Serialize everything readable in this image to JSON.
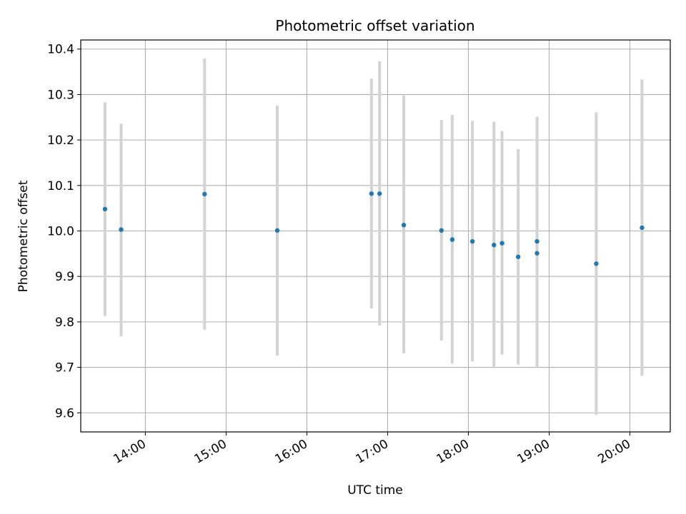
{
  "chart_data": {
    "type": "scatter",
    "title": "Photometric offset variation",
    "xlabel": "UTC time",
    "ylabel": "Photometric offset",
    "x_tick_labels": [
      "14:00",
      "15:00",
      "16:00",
      "17:00",
      "18:00",
      "19:00",
      "20:00"
    ],
    "y_tick_labels": [
      "9.6",
      "9.7",
      "9.8",
      "9.9",
      "10.0",
      "10.1",
      "10.2",
      "10.3",
      "10.4"
    ],
    "xlim": [
      "13:12",
      "20:30"
    ],
    "ylim": [
      9.558,
      10.42
    ],
    "grid": true,
    "marker_color": "#1f77b4",
    "errorbar_color": "#d3d3d3",
    "points": [
      {
        "x": "13:30",
        "y": 10.048,
        "ymin": 9.813,
        "ymax": 10.283
      },
      {
        "x": "13:42",
        "y": 10.003,
        "ymin": 9.768,
        "ymax": 10.236
      },
      {
        "x": "14:44",
        "y": 10.081,
        "ymin": 9.783,
        "ymax": 10.379
      },
      {
        "x": "15:38",
        "y": 10.001,
        "ymin": 9.726,
        "ymax": 10.276
      },
      {
        "x": "16:48",
        "y": 10.082,
        "ymin": 9.83,
        "ymax": 10.335
      },
      {
        "x": "16:54",
        "y": 10.082,
        "ymin": 9.792,
        "ymax": 10.373
      },
      {
        "x": "17:12",
        "y": 10.013,
        "ymin": 9.731,
        "ymax": 10.298
      },
      {
        "x": "17:40",
        "y": 10.001,
        "ymin": 9.759,
        "ymax": 10.244
      },
      {
        "x": "17:48",
        "y": 9.981,
        "ymin": 9.708,
        "ymax": 10.255
      },
      {
        "x": "18:03",
        "y": 9.977,
        "ymin": 9.713,
        "ymax": 10.242
      },
      {
        "x": "18:19",
        "y": 9.969,
        "ymin": 9.7,
        "ymax": 10.24
      },
      {
        "x": "18:25",
        "y": 9.973,
        "ymin": 9.728,
        "ymax": 10.22
      },
      {
        "x": "18:37",
        "y": 9.943,
        "ymin": 9.706,
        "ymax": 10.18
      },
      {
        "x": "18:51",
        "y": 9.951,
        "ymin": 9.7,
        "ymax": 10.251
      },
      {
        "x": "18:51",
        "y": 9.977,
        "ymin": 9.7,
        "ymax": 10.251
      },
      {
        "x": "19:35",
        "y": 9.928,
        "ymin": 9.595,
        "ymax": 10.261
      },
      {
        "x": "20:09",
        "y": 10.007,
        "ymin": 9.681,
        "ymax": 10.333
      }
    ]
  }
}
